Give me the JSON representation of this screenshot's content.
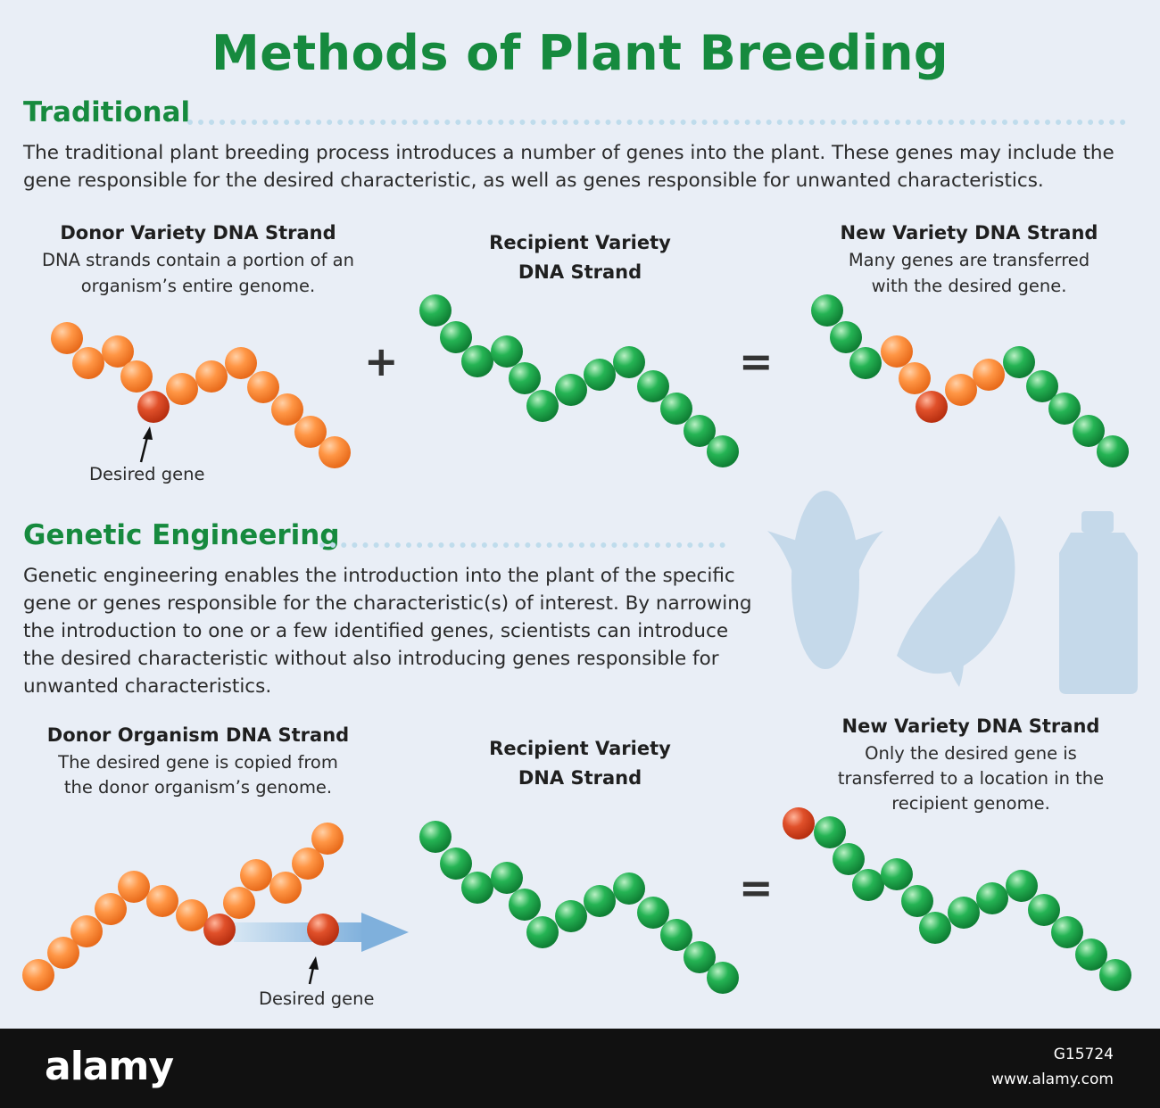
{
  "title": "Methods of Plant Breeding",
  "traditional": {
    "heading": "Traditional",
    "line1": "The traditional plant breeding process introduces a number of genes into the plant. These genes may include the",
    "line2": "gene responsible for the desired characteristic, as well as genes responsible for unwanted characteristics.",
    "donor": {
      "title": "Donor Variety DNA Strand",
      "line1": "DNA strands contain a portion of an",
      "line2": "organism’s entire genome."
    },
    "recipient": {
      "title1": "Recipient Variety",
      "title2": "DNA Strand"
    },
    "new_variety": {
      "title": "New Variety DNA Strand",
      "line1": "Many genes are transferred",
      "line2": "with the desired gene."
    },
    "desired_gene_label": "Desired gene",
    "plus": "+",
    "equals": "="
  },
  "genetic": {
    "heading": "Genetic Engineering",
    "lines": [
      "Genetic engineering enables the introduction into the plant of the specific",
      "gene or genes responsible for the characteristic(s) of interest. By narrowing",
      "the introduction to one or a few identified genes, scientists can introduce",
      "the desired characteristic without also introducing genes responsible for",
      "unwanted characteristics."
    ],
    "donor": {
      "title": "Donor Organism DNA Strand",
      "line1": "The desired gene is copied from",
      "line2": "the donor organism’s genome."
    },
    "recipient": {
      "title1": "Recipient Variety",
      "title2": "DNA Strand"
    },
    "new_variety": {
      "title": "New Variety DNA Strand",
      "line1": "Only the desired gene is",
      "line2": "transferred to a location in the",
      "line3": "recipient genome."
    },
    "desired_gene_label": "Desired gene",
    "equals": "="
  },
  "icons": [
    "corn-icon",
    "soybean-pod-icon",
    "oil-bottle-icon"
  ],
  "colors": {
    "title_green": "#168a3e",
    "orange_bead": "#f58a3a",
    "red_bead": "#d4401e",
    "green_bead": "#1ea24a",
    "background": "#e9eef6"
  },
  "footer": {
    "logo": "alamy",
    "image_id": "G15724",
    "site": "www.alamy.com"
  }
}
